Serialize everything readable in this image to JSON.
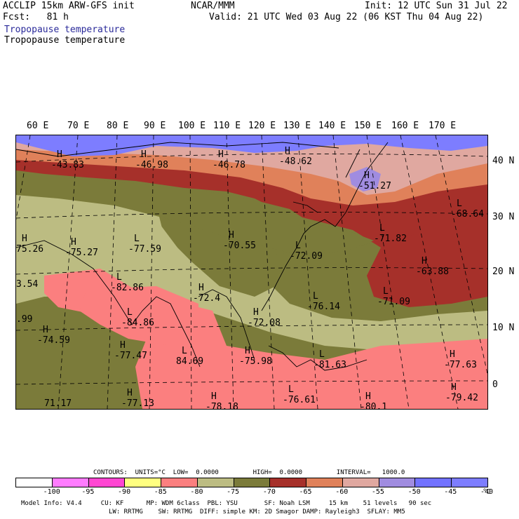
{
  "header": {
    "model": "ACCLIP 15km ARW-GFS init",
    "center": "NCAR/MMM",
    "init": "Init: 12 UTC Sun 31 Jul 22",
    "fcst": "Fcst:   81 h",
    "valid": "Valid: 21 UTC Wed 03 Aug 22 (06 KST Thu 04 Aug 22)",
    "title_line1": "Tropopause temperature",
    "title_line2": "Tropopause temperature"
  },
  "map": {
    "lon_labels": [
      "60 E",
      "70 E",
      "80 E",
      "90 E",
      "100 E",
      "110 E",
      "120 E",
      "130 E",
      "140 E",
      "150 E",
      "160 E",
      "170 E"
    ],
    "lat_labels": [
      "40 N",
      "30 N",
      "20 N",
      "10 N",
      "0"
    ],
    "extrema": [
      {
        "mark": "H",
        "value": "-43.83"
      },
      {
        "mark": "H",
        "value": "-46.98"
      },
      {
        "mark": "H",
        "value": "-46.78"
      },
      {
        "mark": "H",
        "value": "-48.62"
      },
      {
        "mark": "H",
        "value": "-51.27"
      },
      {
        "mark": "L",
        "value": "-68.64"
      },
      {
        "mark": "H",
        "value": "-75.27"
      },
      {
        "mark": "L",
        "value": "-77.59"
      },
      {
        "mark": "H",
        "value": "-70.55"
      },
      {
        "mark": "L",
        "value": "-71.82"
      },
      {
        "mark": "L",
        "value": "-72.09"
      },
      {
        "mark": "H",
        "value": "-63.88"
      },
      {
        "mark": "L",
        "value": "-82.86"
      },
      {
        "mark": "L",
        "value": "-84.86"
      },
      {
        "mark": "H",
        "value": "-72.4"
      },
      {
        "mark": "H",
        "value": "-72.08"
      },
      {
        "mark": "L",
        "value": "-76.14"
      },
      {
        "mark": "L",
        "value": "-71.09"
      },
      {
        "mark": "H",
        "value": "-74.59"
      },
      {
        "mark": "H",
        "value": "-77.47"
      },
      {
        "mark": "L",
        "value": "84.69"
      },
      {
        "mark": "H",
        "value": "-75.98"
      },
      {
        "mark": "L",
        "value": "-81.63"
      },
      {
        "mark": "H",
        "value": "-77.63"
      },
      {
        "mark": "H",
        "value": "-79.42"
      },
      {
        "mark": "H",
        "value": "-77.13"
      },
      {
        "mark": "H",
        "value": "-78.18"
      },
      {
        "mark": "L",
        "value": "-76.61"
      },
      {
        "mark": "H",
        "value": "75.26"
      },
      {
        "mark": "",
        "value": "3.54"
      },
      {
        "mark": "",
        "value": ".99"
      },
      {
        "mark": "",
        "value": "71.17"
      },
      {
        "mark": "H",
        "value": "-80.1"
      }
    ]
  },
  "legend": {
    "contours_line": "CONTOURS:  UNITS=°C  LOW=  0.0000         HIGH=  0.0000         INTERVAL=   1000.0",
    "colors": [
      "#ffffff",
      "#ff7cff",
      "#ff46d2",
      "#ffff80",
      "#fb7f7f",
      "#bcbc82",
      "#7b7b3a",
      "#a6302a",
      "#e0815a",
      "#e0a8a0",
      "#a08ce0",
      "#7272ff",
      "#7d7dff"
    ],
    "ticks": [
      "-100",
      "-95",
      "-90",
      "-85",
      "-80",
      "-75",
      "-70",
      "-65",
      "-60",
      "-55",
      "-50",
      "-45",
      "-40",
      "°C"
    ]
  },
  "footer": {
    "line1": "Model Info: V4.4     CU: KF      MP: WDM 6class  PBL: YSU       SF: Noah LSM     15 km    51 levels   90 sec",
    "line2": "LW: RRTMG    SW: RRTMG  DIFF: simple KM: 2D Smagor DAMP: Rayleigh3  SFLAY: MM5"
  }
}
